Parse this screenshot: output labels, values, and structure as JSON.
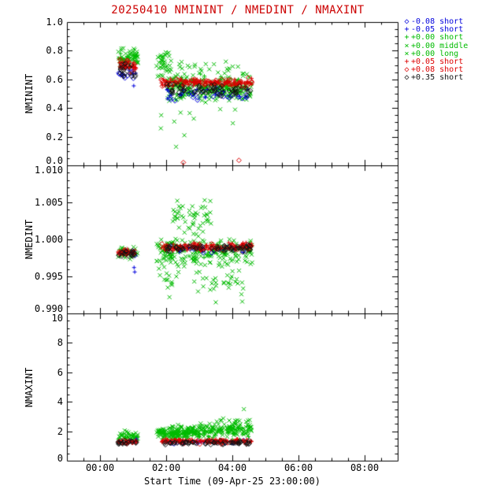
{
  "figure": {
    "background": "#ffffff",
    "frame_color": "#000000"
  },
  "chart_data": {
    "type": "scatter",
    "title": "20250410 NMININT / NMEDINT / NMAXINT",
    "title_color": "#cc0000",
    "xlabel": "Start Time (09-Apr-25 23:00:00)",
    "x_axis": {
      "start_hour": -1,
      "end_hour": 9,
      "tick_hours": [
        0,
        2,
        4,
        6,
        8
      ],
      "ticks": [
        "00:00",
        "02:00",
        "04:00",
        "06:00",
        "08:00"
      ],
      "minor_step_hours": 0.5
    },
    "panels": [
      {
        "ylabel": "NMININT",
        "ylim": [
          0.0,
          1.0
        ],
        "ytick_vals": [
          0.0,
          0.2,
          0.4,
          0.6,
          0.8,
          1.0
        ],
        "yticks": [
          "0.0",
          "0.2",
          "0.4",
          "0.6",
          "0.8",
          "1.0"
        ],
        "minor_step": 0.05
      },
      {
        "ylabel": "NMEDINT",
        "ylim": [
          0.99,
          1.01
        ],
        "ytick_vals": [
          0.99,
          0.995,
          1.0,
          1.005,
          1.01
        ],
        "yticks": [
          "0.990",
          "0.995",
          "1.000",
          "1.005",
          "1.010"
        ],
        "minor_step": 0.001
      },
      {
        "ylabel": "NMAXINT",
        "ylim": [
          0,
          10
        ],
        "ytick_vals": [
          0,
          2,
          4,
          6,
          8,
          10
        ],
        "yticks": [
          "0",
          "2",
          "4",
          "6",
          "8",
          "10"
        ],
        "minor_step": 0.5
      }
    ],
    "series": [
      {
        "label": "-0.08 short",
        "color": "#0000dd",
        "marker": "diamond",
        "symbol": "◇"
      },
      {
        "label": "-0.05 short",
        "color": "#0000dd",
        "marker": "plus",
        "symbol": "+"
      },
      {
        "label": "+0.00 short",
        "color": "#00bb00",
        "marker": "plus",
        "symbol": "+"
      },
      {
        "label": "+0.00 middle",
        "color": "#00bb00",
        "marker": "x",
        "symbol": "×"
      },
      {
        "label": "+0.00 long",
        "color": "#00bb00",
        "marker": "x",
        "symbol": "×"
      },
      {
        "label": "+0.05 short",
        "color": "#dd0000",
        "marker": "plus",
        "symbol": "+"
      },
      {
        "label": "+0.08 short",
        "color": "#dd0000",
        "marker": "diamond",
        "symbol": "◇"
      },
      {
        "label": "+0.35 short",
        "color": "#111111",
        "marker": "diamond",
        "symbol": "◇"
      }
    ],
    "clusters": [
      {
        "p": 0,
        "s": 3,
        "t": [
          0.55,
          1.15
        ],
        "v": [
          0.7,
          0.84
        ],
        "n": 30
      },
      {
        "p": 0,
        "s": 3,
        "t": [
          1.7,
          2.15
        ],
        "v": [
          0.6,
          0.8
        ],
        "n": 40
      },
      {
        "p": 0,
        "s": 3,
        "t": [
          2.0,
          4.6
        ],
        "v": [
          0.44,
          0.66
        ],
        "n": 150
      },
      {
        "p": 0,
        "s": 3,
        "t": [
          2.2,
          4.4
        ],
        "v": [
          0.62,
          0.74
        ],
        "n": 20
      },
      {
        "p": 0,
        "s": 3,
        "t": [
          1.8,
          4.2
        ],
        "v": [
          0.2,
          0.42
        ],
        "n": 8
      },
      {
        "p": 0,
        "s": 4,
        "t": [
          0.55,
          1.15
        ],
        "v": [
          0.68,
          0.8
        ],
        "n": 20
      },
      {
        "p": 0,
        "s": 4,
        "t": [
          2.0,
          4.6
        ],
        "v": [
          0.42,
          0.62
        ],
        "n": 80
      },
      {
        "p": 0,
        "s": 2,
        "t": [
          0.55,
          1.15
        ],
        "v": [
          0.7,
          0.8
        ],
        "n": 15
      },
      {
        "p": 0,
        "s": 2,
        "t": [
          1.9,
          4.6
        ],
        "v": [
          0.48,
          0.64
        ],
        "n": 60
      },
      {
        "p": 0,
        "s": 5,
        "t": [
          0.55,
          1.1
        ],
        "v": [
          0.64,
          0.74
        ],
        "n": 30
      },
      {
        "p": 0,
        "s": 5,
        "t": [
          1.85,
          4.6
        ],
        "v": [
          0.54,
          0.61
        ],
        "n": 120
      },
      {
        "p": 0,
        "s": 6,
        "t": [
          0.55,
          1.1
        ],
        "v": [
          0.66,
          0.75
        ],
        "n": 15
      },
      {
        "p": 0,
        "s": 6,
        "t": [
          1.85,
          4.6
        ],
        "v": [
          0.55,
          0.62
        ],
        "n": 40
      },
      {
        "p": 0,
        "s": 7,
        "t": [
          0.55,
          1.1
        ],
        "v": [
          0.6,
          0.72
        ],
        "n": 20
      },
      {
        "p": 0,
        "s": 7,
        "t": [
          1.9,
          4.55
        ],
        "v": [
          0.47,
          0.57
        ],
        "n": 70
      },
      {
        "p": 0,
        "s": 0,
        "t": [
          0.55,
          1.1
        ],
        "v": [
          0.58,
          0.67
        ],
        "n": 8
      },
      {
        "p": 0,
        "s": 0,
        "t": [
          1.9,
          4.5
        ],
        "v": [
          0.44,
          0.54
        ],
        "n": 25
      },
      {
        "p": 0,
        "s": 1,
        "t": [
          0.55,
          1.1
        ],
        "v": [
          0.6,
          0.7
        ],
        "n": 8
      },
      {
        "p": 0,
        "s": 1,
        "t": [
          1.9,
          4.5
        ],
        "v": [
          0.45,
          0.55
        ],
        "n": 20
      },
      {
        "p": 1,
        "s": 3,
        "t": [
          0.55,
          1.15
        ],
        "v": [
          0.9972,
          0.9992
        ],
        "n": 30
      },
      {
        "p": 1,
        "s": 3,
        "t": [
          1.7,
          4.6
        ],
        "v": [
          0.996,
          1.0005
        ],
        "n": 120
      },
      {
        "p": 1,
        "s": 3,
        "t": [
          2.2,
          3.4
        ],
        "v": [
          1.0,
          1.0062
        ],
        "n": 40
      },
      {
        "p": 1,
        "s": 3,
        "t": [
          1.75,
          4.5
        ],
        "v": [
          0.992,
          0.9968
        ],
        "n": 35
      },
      {
        "p": 1,
        "s": 4,
        "t": [
          1.9,
          4.6
        ],
        "v": [
          0.9965,
          1.0
        ],
        "n": 60
      },
      {
        "p": 1,
        "s": 4,
        "t": [
          2.5,
          3.3
        ],
        "v": [
          1.0,
          1.005
        ],
        "n": 15
      },
      {
        "p": 1,
        "s": 4,
        "t": [
          1.9,
          4.4
        ],
        "v": [
          0.993,
          0.9965
        ],
        "n": 10
      },
      {
        "p": 1,
        "s": 2,
        "t": [
          0.55,
          1.15
        ],
        "v": [
          0.9974,
          0.999
        ],
        "n": 12
      },
      {
        "p": 1,
        "s": 2,
        "t": [
          1.9,
          4.6
        ],
        "v": [
          0.9972,
          0.9998
        ],
        "n": 50
      },
      {
        "p": 1,
        "s": 5,
        "t": [
          0.55,
          1.1
        ],
        "v": [
          0.9978,
          0.9988
        ],
        "n": 25
      },
      {
        "p": 1,
        "s": 5,
        "t": [
          1.85,
          4.6
        ],
        "v": [
          0.9984,
          0.9996
        ],
        "n": 110
      },
      {
        "p": 1,
        "s": 6,
        "t": [
          0.55,
          1.1
        ],
        "v": [
          0.9978,
          0.9988
        ],
        "n": 12
      },
      {
        "p": 1,
        "s": 6,
        "t": [
          1.85,
          4.6
        ],
        "v": [
          0.9984,
          0.9996
        ],
        "n": 35
      },
      {
        "p": 1,
        "s": 7,
        "t": [
          0.55,
          1.1
        ],
        "v": [
          0.9976,
          0.9986
        ],
        "n": 18
      },
      {
        "p": 1,
        "s": 7,
        "t": [
          1.9,
          4.55
        ],
        "v": [
          0.9982,
          0.9994
        ],
        "n": 60
      },
      {
        "p": 1,
        "s": 0,
        "t": [
          0.6,
          1.1
        ],
        "v": [
          0.9976,
          0.9986
        ],
        "n": 5
      },
      {
        "p": 1,
        "s": 0,
        "t": [
          1.9,
          4.5
        ],
        "v": [
          0.998,
          0.9992
        ],
        "n": 15
      },
      {
        "p": 1,
        "s": 1,
        "t": [
          1.9,
          4.5
        ],
        "v": [
          0.998,
          0.9992
        ],
        "n": 10
      },
      {
        "p": 2,
        "s": 3,
        "t": [
          0.55,
          1.15
        ],
        "v": [
          1.3,
          2.1
        ],
        "n": 35
      },
      {
        "p": 2,
        "s": 3,
        "t": [
          1.7,
          3.0
        ],
        "v": [
          1.4,
          2.4
        ],
        "n": 120
      },
      {
        "p": 2,
        "s": 3,
        "t": [
          3.0,
          4.6
        ],
        "v": [
          1.6,
          2.9
        ],
        "n": 100
      },
      {
        "p": 2,
        "s": 4,
        "t": [
          1.9,
          4.6
        ],
        "v": [
          1.5,
          2.5
        ],
        "n": 70
      },
      {
        "p": 2,
        "s": 2,
        "t": [
          0.55,
          1.15
        ],
        "v": [
          1.3,
          1.8
        ],
        "n": 12
      },
      {
        "p": 2,
        "s": 2,
        "t": [
          1.9,
          4.6
        ],
        "v": [
          1.4,
          2.2
        ],
        "n": 50
      },
      {
        "p": 2,
        "s": 5,
        "t": [
          0.55,
          1.1
        ],
        "v": [
          1.15,
          1.45
        ],
        "n": 25
      },
      {
        "p": 2,
        "s": 5,
        "t": [
          1.85,
          4.6
        ],
        "v": [
          1.15,
          1.5
        ],
        "n": 110
      },
      {
        "p": 2,
        "s": 6,
        "t": [
          0.55,
          1.1
        ],
        "v": [
          1.1,
          1.45
        ],
        "n": 10
      },
      {
        "p": 2,
        "s": 6,
        "t": [
          1.85,
          4.6
        ],
        "v": [
          1.1,
          1.45
        ],
        "n": 30
      },
      {
        "p": 2,
        "s": 7,
        "t": [
          0.55,
          1.1
        ],
        "v": [
          1.1,
          1.4
        ],
        "n": 18
      },
      {
        "p": 2,
        "s": 7,
        "t": [
          1.9,
          4.55
        ],
        "v": [
          1.05,
          1.4
        ],
        "n": 60
      },
      {
        "p": 2,
        "s": 0,
        "t": [
          1.9,
          4.5
        ],
        "v": [
          1.1,
          1.4
        ],
        "n": 15
      },
      {
        "p": 2,
        "s": 1,
        "t": [
          0.6,
          1.1
        ],
        "v": [
          1.2,
          1.5
        ],
        "n": 5
      },
      {
        "p": 2,
        "s": 1,
        "t": [
          1.9,
          4.5
        ],
        "v": [
          1.2,
          1.5
        ],
        "n": 12
      }
    ],
    "outliers": [
      {
        "p": 0,
        "s": 6,
        "t": 2.52,
        "v": 0.02
      },
      {
        "p": 0,
        "s": 6,
        "t": 4.2,
        "v": 0.035
      },
      {
        "p": 0,
        "s": 3,
        "t": 2.55,
        "v": 0.21
      },
      {
        "p": 0,
        "s": 3,
        "t": 2.3,
        "v": 0.13
      },
      {
        "p": 0,
        "s": 3,
        "t": 1.85,
        "v": 0.35
      },
      {
        "p": 0,
        "s": 1,
        "t": 1.02,
        "v": 0.555
      },
      {
        "p": 1,
        "s": 1,
        "t": 1.03,
        "v": 0.9962
      },
      {
        "p": 1,
        "s": 1,
        "t": 1.05,
        "v": 0.9956
      },
      {
        "p": 1,
        "s": 3,
        "t": 2.1,
        "v": 0.9922
      },
      {
        "p": 1,
        "s": 3,
        "t": 3.5,
        "v": 0.9915
      },
      {
        "p": 1,
        "s": 3,
        "t": 4.3,
        "v": 0.9916
      },
      {
        "p": 2,
        "s": 3,
        "t": 4.35,
        "v": 3.5
      }
    ]
  }
}
